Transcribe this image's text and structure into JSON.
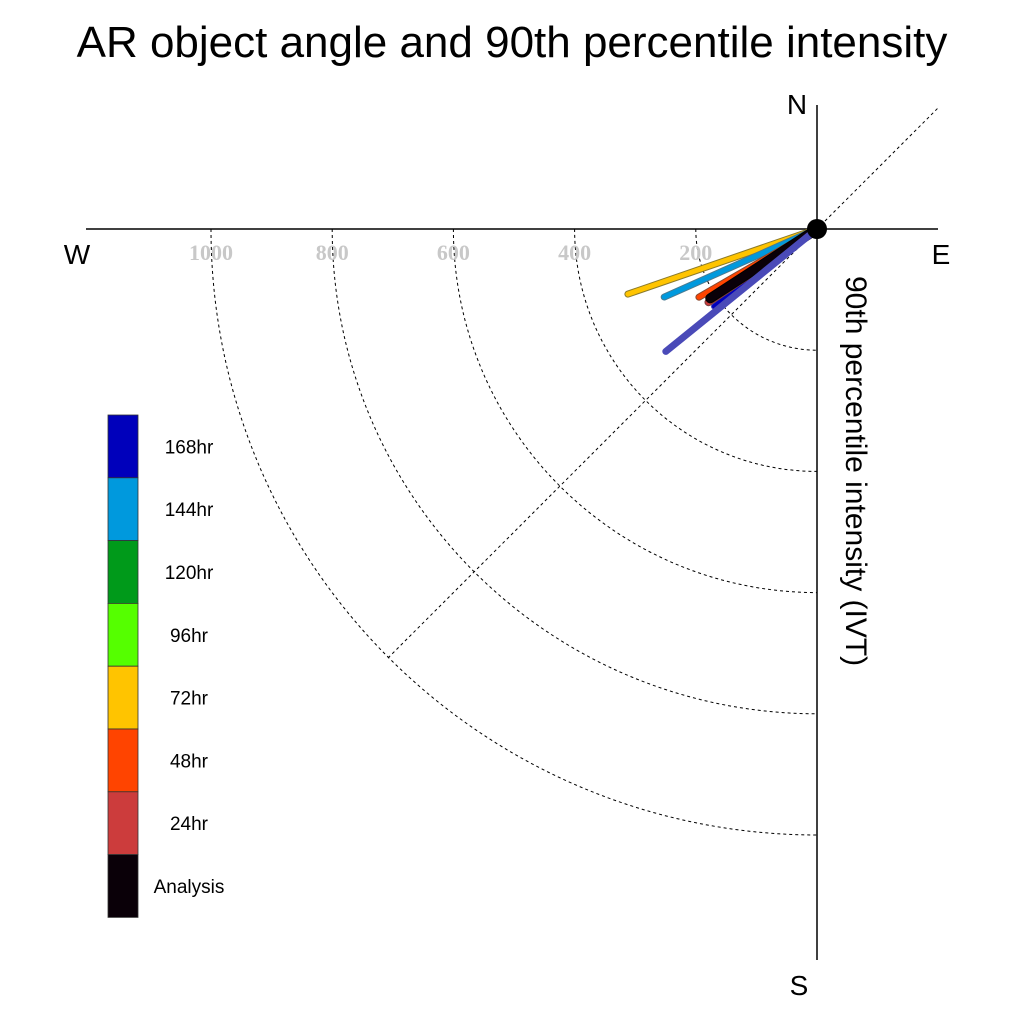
{
  "chart_data": {
    "type": "scatter",
    "title": "AR object angle and 90th percentile intensity",
    "ylabel": "90th percentile intensity (IVT)",
    "compass": {
      "north": "N",
      "south": "S",
      "east": "E",
      "west": "W"
    },
    "radius_ticks": [
      {
        "value": 200,
        "label": "200"
      },
      {
        "value": 400,
        "label": "400"
      },
      {
        "value": 600,
        "label": "600"
      },
      {
        "value": 800,
        "label": "800"
      },
      {
        "value": 1000,
        "label": "1000"
      }
    ],
    "range_max": 1000,
    "grid": true,
    "legend_position": "left",
    "series": [
      {
        "name": "72hr",
        "color": "#ffc400",
        "outline": "#8a7a2a",
        "angle_deg": -161,
        "intensity": 330,
        "width": 5
      },
      {
        "name": "144hr",
        "color": "#0099dd",
        "outline": "#4a7a90",
        "angle_deg": -156,
        "intensity": 276,
        "width": 5
      },
      {
        "name": "48hr",
        "color": "#ff4400",
        "outline": "#8a4a30",
        "angle_deg": -150,
        "intensity": 225,
        "width": 5
      },
      {
        "name": "168hr",
        "color": "#0000bb",
        "outline": "#5050c0",
        "angle_deg": -143,
        "intensity": 212,
        "width": 5
      },
      {
        "name": "24hr",
        "color": "#cc3c3c",
        "outline": "#7a4040",
        "angle_deg": -146,
        "intensity": 216,
        "width": 6
      },
      {
        "name": "Analysis",
        "color": "#0a0008",
        "outline": "#000000",
        "angle_deg": -147,
        "intensity": 210,
        "width": 8
      },
      {
        "name": "168hr",
        "color": "#4a4ab8",
        "outline": "#4a4ab8",
        "angle_deg": -141,
        "intensity": 321,
        "width": 5
      }
    ],
    "legend": [
      {
        "label": "168hr",
        "color": "#0000bb"
      },
      {
        "label": "144hr",
        "color": "#0099dd"
      },
      {
        "label": "120hr",
        "color": "#009a1a"
      },
      {
        "label": "96hr",
        "color": "#55ff00"
      },
      {
        "label": "72hr",
        "color": "#ffc400"
      },
      {
        "label": "48hr",
        "color": "#ff4400"
      },
      {
        "label": "24hr",
        "color": "#cc3c3c"
      },
      {
        "label": "Analysis",
        "color": "#0a0008"
      }
    ]
  }
}
